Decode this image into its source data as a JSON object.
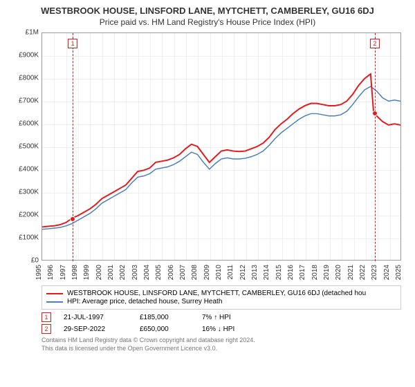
{
  "title": "WESTBROOK HOUSE, LINSFORD LANE, MYTCHETT, CAMBERLEY, GU16 6DJ",
  "subtitle": "Price paid vs. HM Land Registry's House Price Index (HPI)",
  "chart": {
    "type": "line",
    "ylim": [
      0,
      1000000
    ],
    "ytick_step": 100000,
    "ylabels": [
      "£0",
      "£100K",
      "£200K",
      "£300K",
      "£400K",
      "£500K",
      "£600K",
      "£700K",
      "£800K",
      "£900K",
      "£1M"
    ],
    "xlim": [
      1995,
      2025
    ],
    "xticks": [
      1995,
      1996,
      1997,
      1998,
      1999,
      2000,
      2001,
      2002,
      2003,
      2004,
      2005,
      2006,
      2007,
      2008,
      2009,
      2010,
      2011,
      2012,
      2013,
      2014,
      2015,
      2016,
      2017,
      2018,
      2019,
      2020,
      2021,
      2022,
      2023,
      2024,
      2025
    ],
    "background_color": "#ffffff",
    "grid_color": "#eeeeee",
    "border_color": "#999999",
    "series": [
      {
        "name": "WESTBROOK HOUSE, LINSFORD LANE, MYTCHETT, CAMBERLEY, GU16 6DJ (detached hou",
        "color": "#e31a1c",
        "line_width": 2,
        "data": [
          [
            1995,
            145000
          ],
          [
            1995.5,
            148000
          ],
          [
            1996,
            150000
          ],
          [
            1996.5,
            155000
          ],
          [
            1997,
            165000
          ],
          [
            1997.55,
            185000
          ],
          [
            1998,
            195000
          ],
          [
            1998.5,
            210000
          ],
          [
            1999,
            225000
          ],
          [
            1999.5,
            245000
          ],
          [
            2000,
            270000
          ],
          [
            2000.5,
            285000
          ],
          [
            2001,
            300000
          ],
          [
            2001.5,
            315000
          ],
          [
            2002,
            330000
          ],
          [
            2002.5,
            360000
          ],
          [
            2003,
            390000
          ],
          [
            2003.5,
            395000
          ],
          [
            2004,
            405000
          ],
          [
            2004.5,
            430000
          ],
          [
            2005,
            435000
          ],
          [
            2005.5,
            440000
          ],
          [
            2006,
            450000
          ],
          [
            2006.5,
            465000
          ],
          [
            2007,
            490000
          ],
          [
            2007.5,
            510000
          ],
          [
            2008,
            500000
          ],
          [
            2008.5,
            465000
          ],
          [
            2009,
            430000
          ],
          [
            2009.5,
            455000
          ],
          [
            2010,
            480000
          ],
          [
            2010.5,
            485000
          ],
          [
            2011,
            480000
          ],
          [
            2011.5,
            478000
          ],
          [
            2012,
            480000
          ],
          [
            2012.5,
            490000
          ],
          [
            2013,
            500000
          ],
          [
            2013.5,
            515000
          ],
          [
            2014,
            540000
          ],
          [
            2014.5,
            575000
          ],
          [
            2015,
            600000
          ],
          [
            2015.5,
            620000
          ],
          [
            2016,
            645000
          ],
          [
            2016.5,
            665000
          ],
          [
            2017,
            680000
          ],
          [
            2017.5,
            690000
          ],
          [
            2018,
            690000
          ],
          [
            2018.5,
            685000
          ],
          [
            2019,
            680000
          ],
          [
            2019.5,
            680000
          ],
          [
            2020,
            685000
          ],
          [
            2020.5,
            700000
          ],
          [
            2021,
            730000
          ],
          [
            2021.5,
            770000
          ],
          [
            2022,
            800000
          ],
          [
            2022.5,
            820000
          ],
          [
            2022.75,
            650000
          ],
          [
            2023,
            635000
          ],
          [
            2023.5,
            610000
          ],
          [
            2024,
            595000
          ],
          [
            2024.5,
            600000
          ],
          [
            2025,
            595000
          ]
        ]
      },
      {
        "name": "HPI: Average price, detached house, Surrey Heath",
        "color": "#4a7fb8",
        "line_width": 1.5,
        "data": [
          [
            1995,
            135000
          ],
          [
            1995.5,
            137000
          ],
          [
            1996,
            140000
          ],
          [
            1996.5,
            143000
          ],
          [
            1997,
            150000
          ],
          [
            1997.5,
            160000
          ],
          [
            1998,
            175000
          ],
          [
            1998.5,
            190000
          ],
          [
            1999,
            205000
          ],
          [
            1999.5,
            225000
          ],
          [
            2000,
            250000
          ],
          [
            2000.5,
            265000
          ],
          [
            2001,
            280000
          ],
          [
            2001.5,
            295000
          ],
          [
            2002,
            310000
          ],
          [
            2002.5,
            340000
          ],
          [
            2003,
            365000
          ],
          [
            2003.5,
            370000
          ],
          [
            2004,
            380000
          ],
          [
            2004.5,
            400000
          ],
          [
            2005,
            405000
          ],
          [
            2005.5,
            410000
          ],
          [
            2006,
            420000
          ],
          [
            2006.5,
            435000
          ],
          [
            2007,
            455000
          ],
          [
            2007.5,
            475000
          ],
          [
            2008,
            465000
          ],
          [
            2008.5,
            430000
          ],
          [
            2009,
            400000
          ],
          [
            2009.5,
            425000
          ],
          [
            2010,
            445000
          ],
          [
            2010.5,
            450000
          ],
          [
            2011,
            445000
          ],
          [
            2011.5,
            445000
          ],
          [
            2012,
            448000
          ],
          [
            2012.5,
            455000
          ],
          [
            2013,
            465000
          ],
          [
            2013.5,
            480000
          ],
          [
            2014,
            505000
          ],
          [
            2014.5,
            535000
          ],
          [
            2015,
            560000
          ],
          [
            2015.5,
            580000
          ],
          [
            2016,
            600000
          ],
          [
            2016.5,
            620000
          ],
          [
            2017,
            635000
          ],
          [
            2017.5,
            645000
          ],
          [
            2018,
            645000
          ],
          [
            2018.5,
            640000
          ],
          [
            2019,
            635000
          ],
          [
            2019.5,
            635000
          ],
          [
            2020,
            640000
          ],
          [
            2020.5,
            655000
          ],
          [
            2021,
            685000
          ],
          [
            2021.5,
            720000
          ],
          [
            2022,
            750000
          ],
          [
            2022.5,
            765000
          ],
          [
            2023,
            745000
          ],
          [
            2023.5,
            715000
          ],
          [
            2024,
            700000
          ],
          [
            2024.5,
            705000
          ],
          [
            2025,
            700000
          ]
        ]
      }
    ],
    "markers": [
      {
        "num": "1",
        "x": 1997.55,
        "y": 185000
      },
      {
        "num": "2",
        "x": 2022.75,
        "y": 650000
      }
    ]
  },
  "legend": [
    {
      "color": "#e31a1c",
      "label": "WESTBROOK HOUSE, LINSFORD LANE, MYTCHETT, CAMBERLEY, GU16 6DJ (detached hou"
    },
    {
      "color": "#4a7fb8",
      "label": "HPI: Average price, detached house, Surrey Heath"
    }
  ],
  "sales": [
    {
      "num": "1",
      "date": "21-JUL-1997",
      "price": "£185,000",
      "pct": "7% ↑ HPI"
    },
    {
      "num": "2",
      "date": "29-SEP-2022",
      "price": "£650,000",
      "pct": "16% ↓ HPI"
    }
  ],
  "footer": {
    "line1": "Contains HM Land Registry data © Crown copyright and database right 2024.",
    "line2": "This data is licensed under the Open Government Licence v3.0."
  }
}
